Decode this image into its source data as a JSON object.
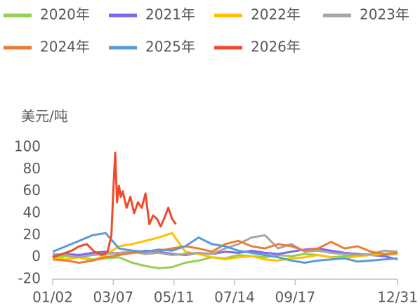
{
  "chart_data": {
    "type": "line",
    "y_axis_label": "美元/吨",
    "xlim": [
      0,
      364
    ],
    "xticks": [
      {
        "value": 0,
        "label": "01/02"
      },
      {
        "value": 64,
        "label": "03/07"
      },
      {
        "value": 128,
        "label": "05/11"
      },
      {
        "value": 192,
        "label": "07/14"
      },
      {
        "value": 256,
        "label": "09/17"
      },
      {
        "value": 364,
        "label": "12/31"
      }
    ],
    "ylim": [
      -20,
      100
    ],
    "yticks": [
      -20,
      0,
      20,
      40,
      60,
      80,
      100
    ],
    "grid": false,
    "legend": "top",
    "series": [
      {
        "name": "2020年",
        "color": "#92d050",
        "x": [
          0,
          14,
          28,
          42,
          56,
          70,
          84,
          98,
          112,
          126,
          140,
          154,
          168,
          182,
          196,
          210,
          224,
          238,
          252,
          266,
          280,
          294,
          308,
          322,
          336,
          350,
          364
        ],
        "values": [
          0,
          1,
          0,
          -2,
          -1,
          0,
          -5,
          -8,
          -10,
          -9,
          -5,
          -3,
          0,
          -1,
          2,
          1,
          0,
          2,
          1,
          3,
          2,
          0,
          1,
          2,
          3,
          2,
          3
        ]
      },
      {
        "name": "2021年",
        "color": "#7b68ee",
        "x": [
          0,
          14,
          28,
          42,
          56,
          70,
          84,
          98,
          112,
          126,
          140,
          154,
          168,
          182,
          196,
          210,
          224,
          238,
          252,
          266,
          280,
          294,
          308,
          322,
          336,
          350,
          364
        ],
        "values": [
          2,
          3,
          2,
          4,
          5,
          3,
          4,
          6,
          5,
          3,
          2,
          4,
          3,
          5,
          4,
          6,
          4,
          3,
          5,
          7,
          8,
          6,
          4,
          3,
          2,
          1,
          -2
        ]
      },
      {
        "name": "2022年",
        "color": "#ffc000",
        "x": [
          0,
          14,
          28,
          42,
          56,
          70,
          84,
          98,
          112,
          126,
          140,
          154,
          168,
          182,
          196,
          210,
          224,
          238,
          252,
          266,
          280,
          294,
          308,
          322,
          336,
          350,
          364
        ],
        "values": [
          0,
          -2,
          0,
          -3,
          2,
          10,
          12,
          15,
          18,
          22,
          5,
          3,
          0,
          -2,
          0,
          1,
          -2,
          -3,
          -1,
          0,
          2,
          0,
          -1,
          1,
          2,
          3,
          3
        ]
      },
      {
        "name": "2023年",
        "color": "#a6a6a6",
        "x": [
          0,
          14,
          28,
          42,
          56,
          70,
          84,
          98,
          112,
          126,
          140,
          154,
          168,
          182,
          196,
          210,
          224,
          238,
          252,
          266,
          280,
          294,
          308,
          322,
          336,
          350,
          364
        ],
        "values": [
          3,
          2,
          0,
          2,
          3,
          4,
          5,
          3,
          4,
          2,
          3,
          4,
          3,
          8,
          12,
          18,
          20,
          8,
          12,
          5,
          6,
          4,
          3,
          2,
          3,
          6,
          5
        ]
      },
      {
        "name": "2024年",
        "color": "#ed7d31",
        "x": [
          0,
          14,
          28,
          42,
          56,
          70,
          84,
          98,
          112,
          126,
          140,
          154,
          168,
          182,
          196,
          210,
          224,
          238,
          252,
          266,
          280,
          294,
          308,
          322,
          336,
          350,
          364
        ],
        "values": [
          -2,
          -3,
          -5,
          -3,
          0,
          2,
          4,
          5,
          6,
          8,
          10,
          8,
          5,
          12,
          15,
          10,
          8,
          12,
          10,
          6,
          8,
          14,
          8,
          10,
          5,
          3,
          4
        ]
      },
      {
        "name": "2025年",
        "color": "#5b9bd5",
        "x": [
          0,
          14,
          28,
          42,
          56,
          70,
          84,
          98,
          112,
          126,
          140,
          154,
          168,
          182,
          196,
          210,
          224,
          238,
          252,
          266,
          280,
          294,
          308,
          322,
          336,
          350,
          364
        ],
        "values": [
          5,
          10,
          15,
          20,
          22,
          8,
          6,
          5,
          7,
          6,
          10,
          18,
          12,
          10,
          6,
          4,
          2,
          0,
          -3,
          -5,
          -3,
          -2,
          -1,
          -4,
          -3,
          -2,
          -1
        ]
      },
      {
        "name": "2026年",
        "color": "#ee4b2b",
        "x": [
          0,
          10,
          20,
          28,
          36,
          44,
          52,
          58,
          62,
          64,
          66,
          68,
          70,
          72,
          74,
          78,
          82,
          86,
          90,
          94,
          98,
          102,
          106,
          110,
          114,
          118,
          122,
          126,
          130
        ],
        "values": [
          0,
          3,
          6,
          10,
          12,
          5,
          2,
          5,
          20,
          60,
          95,
          50,
          65,
          55,
          60,
          45,
          55,
          40,
          50,
          45,
          58,
          30,
          38,
          35,
          28,
          36,
          45,
          35,
          30
        ]
      }
    ]
  }
}
